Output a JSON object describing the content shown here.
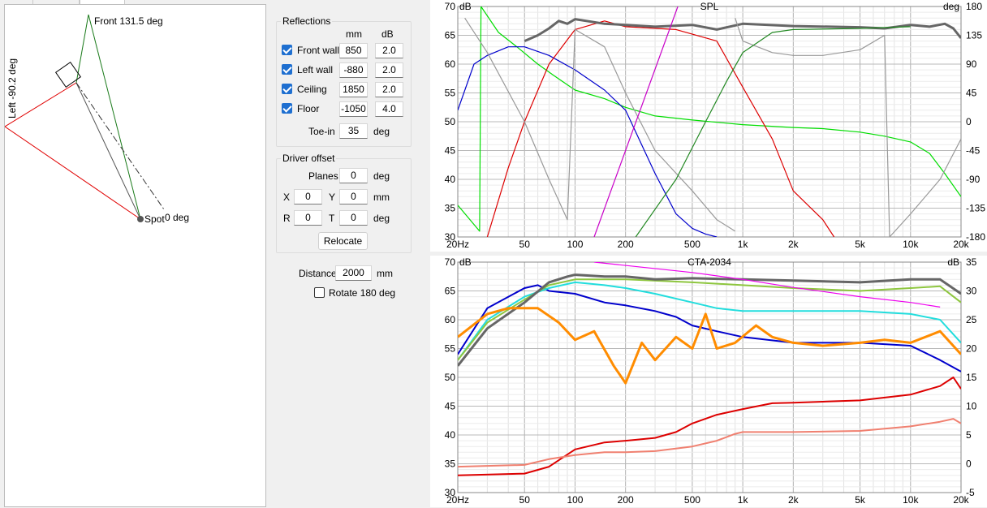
{
  "geometry": {
    "front_label": "Front 131.5 deg",
    "left_label": "Left -90.2 deg",
    "spot_label": "Spot",
    "zero_label": "0 deg"
  },
  "reflections": {
    "title": "Reflections",
    "col_mm": "mm",
    "col_db": "dB",
    "rows": [
      {
        "label": "Front wall",
        "checked": true,
        "mm": "850",
        "db": "2.0"
      },
      {
        "label": "Left wall",
        "checked": true,
        "mm": "-880",
        "db": "2.0"
      },
      {
        "label": "Ceiling",
        "checked": true,
        "mm": "1850",
        "db": "2.0"
      },
      {
        "label": "Floor",
        "checked": true,
        "mm": "-1050",
        "db": "4.0"
      }
    ],
    "toein_label": "Toe-in",
    "toein_value": "35",
    "toein_unit": "deg"
  },
  "driver_offset": {
    "title": "Driver offset",
    "planes_label": "Planes",
    "planes_value": "0",
    "planes_unit": "deg",
    "x_label": "X",
    "x_value": "0",
    "y_label": "Y",
    "y_value": "0",
    "xy_unit": "mm",
    "r_label": "R",
    "r_value": "0",
    "t_label": "T",
    "t_value": "0",
    "rt_unit": "deg",
    "relocate_label": "Relocate"
  },
  "distance": {
    "label": "Distance",
    "value": "2000",
    "unit": "mm"
  },
  "rotate": {
    "label": "Rotate 180 deg",
    "checked": false
  },
  "chart_data": [
    {
      "type": "line",
      "title": "SPL",
      "ylabel": "dB",
      "y2label": "deg",
      "xscale": "log",
      "xlim": [
        20,
        20000
      ],
      "ylim": [
        30,
        70
      ],
      "y2lim": [
        -180,
        180
      ],
      "x_ticks": [
        "20Hz",
        "50",
        "100",
        "200",
        "500",
        "1k",
        "2k",
        "5k",
        "10k",
        "20k"
      ],
      "x_tick_values": [
        20,
        50,
        100,
        200,
        500,
        1000,
        2000,
        5000,
        10000,
        20000
      ],
      "y_ticks": [
        35,
        40,
        45,
        50,
        55,
        60,
        65,
        70
      ],
      "y2_ticks": [
        -180,
        -135,
        -90,
        -45,
        0,
        45,
        90,
        135,
        180
      ],
      "grid": true,
      "series": [
        {
          "color": "#00dd00",
          "axis": "y",
          "x": [
            20,
            27,
            27.5,
            35,
            45,
            60,
            75,
            100,
            150,
            200,
            300,
            500,
            1000,
            2000,
            3000,
            5000,
            7000,
            10000,
            13000,
            16000,
            20000
          ],
          "y": [
            35.5,
            31,
            70,
            65.5,
            63,
            60,
            58,
            55.5,
            54,
            52.5,
            51,
            50.3,
            49.5,
            49,
            48.8,
            48.2,
            47.5,
            46.5,
            44.5,
            41,
            37
          ]
        },
        {
          "color": "#0000cc",
          "axis": "y",
          "x": [
            20,
            25,
            30,
            40,
            50,
            70,
            100,
            150,
            200,
            300,
            400,
            500,
            600,
            700
          ],
          "y": [
            52,
            60,
            61.5,
            63,
            63,
            61.5,
            59,
            55.5,
            52,
            41,
            34,
            31.5,
            30.5,
            30
          ]
        },
        {
          "color": "#dd0000",
          "axis": "y",
          "x": [
            30,
            40,
            50,
            70,
            100,
            150,
            200,
            400,
            700,
            1000,
            1500,
            2000,
            3000,
            3500
          ],
          "y": [
            30,
            42,
            50,
            60,
            66,
            67.5,
            66.5,
            66,
            64,
            56,
            47,
            38,
            33,
            30
          ]
        },
        {
          "color": "#666666",
          "axis": "y",
          "width": 3,
          "x": [
            50,
            60,
            70,
            80,
            90,
            100,
            150,
            200,
            300,
            500,
            700,
            1000,
            2000,
            5000,
            7000,
            10000,
            13000,
            16000,
            18000,
            20000
          ],
          "y": [
            64,
            65,
            66.2,
            67.5,
            67,
            67.8,
            67,
            66.8,
            66.5,
            66.8,
            66,
            67,
            66.6,
            66.4,
            66.2,
            66.8,
            66.5,
            67,
            66.2,
            64.5
          ]
        },
        {
          "color": "#999999",
          "axis": "y",
          "x": [
            22,
            30,
            50,
            70,
            90,
            100,
            150,
            200,
            300,
            500,
            700,
            900
          ],
          "y": [
            68,
            62,
            50,
            40,
            33,
            66,
            63,
            55,
            45,
            38,
            33,
            31
          ]
        },
        {
          "color": "#999999",
          "axis": "y",
          "x": [
            900,
            1000,
            1500,
            2000,
            3000,
            5000,
            7000,
            7500,
            10000,
            15000,
            20000
          ],
          "y": [
            68,
            64,
            62,
            61.5,
            61.5,
            62.5,
            65,
            30,
            34,
            40,
            47
          ]
        },
        {
          "color": "#c800c8",
          "axis": "y",
          "x": [
            130,
            410
          ],
          "y": [
            30,
            70
          ]
        },
        {
          "color": "#228822",
          "axis": "y",
          "x": [
            230,
            400,
            600,
            800,
            1000,
            1500,
            2000,
            5000,
            10000
          ],
          "y": [
            30,
            40,
            50,
            57,
            62,
            65.5,
            66,
            66.2,
            66.5
          ]
        }
      ]
    },
    {
      "type": "line",
      "title": "CTA-2034",
      "ylabel": "dB",
      "y2label": "dB",
      "xscale": "log",
      "xlim": [
        20,
        20000
      ],
      "ylim": [
        30,
        70
      ],
      "y2lim": [
        -5,
        35
      ],
      "x_ticks": [
        "20Hz",
        "50",
        "100",
        "200",
        "500",
        "1k",
        "2k",
        "5k",
        "10k",
        "20k"
      ],
      "x_tick_values": [
        20,
        50,
        100,
        200,
        500,
        1000,
        2000,
        5000,
        10000,
        20000
      ],
      "y_ticks": [
        35,
        40,
        45,
        50,
        55,
        60,
        65,
        70
      ],
      "y2_ticks": [
        -5,
        0,
        5,
        10,
        15,
        20,
        25,
        30,
        35
      ],
      "grid": true,
      "series": [
        {
          "color": "#0000cc",
          "axis": "y",
          "width": 2,
          "x": [
            20,
            30,
            50,
            60,
            70,
            100,
            150,
            200,
            300,
            400,
            500,
            700,
            1000,
            2000,
            5000,
            10000,
            15000,
            20000
          ],
          "y": [
            54,
            62,
            65.5,
            66,
            65,
            64.5,
            63,
            62.5,
            61.5,
            60.5,
            59,
            58,
            57,
            56,
            56,
            55.5,
            53,
            51
          ]
        },
        {
          "color": "#22dddd",
          "axis": "y",
          "width": 2,
          "x": [
            20,
            30,
            50,
            70,
            100,
            150,
            200,
            300,
            500,
            700,
            1000,
            2000,
            5000,
            10000,
            15000,
            20000
          ],
          "y": [
            53,
            60,
            64,
            65.5,
            66.5,
            66,
            65.5,
            64.5,
            63,
            62,
            61.5,
            61.5,
            61.5,
            61,
            60,
            56
          ]
        },
        {
          "color": "#8ec63f",
          "axis": "y",
          "width": 2,
          "x": [
            20,
            30,
            50,
            70,
            100,
            200,
            500,
            1000,
            2000,
            5000,
            10000,
            15000,
            20000
          ],
          "y": [
            53,
            59.5,
            63.5,
            66,
            67,
            67,
            66.5,
            66,
            65.5,
            65,
            65.5,
            65.8,
            63
          ]
        },
        {
          "color": "#666666",
          "axis": "y",
          "width": 3,
          "x": [
            20,
            30,
            50,
            70,
            90,
            100,
            150,
            200,
            300,
            500,
            1000,
            2000,
            5000,
            10000,
            15000,
            20000
          ],
          "y": [
            52,
            58.5,
            63,
            66.5,
            67.5,
            67.8,
            67.5,
            67.5,
            67,
            67.2,
            67,
            66.8,
            66.5,
            67,
            67,
            64.5
          ]
        },
        {
          "color": "#ee00ee",
          "axis": "y",
          "x": [
            130,
            500,
            1000,
            2000,
            5000,
            10000,
            15000
          ],
          "y": [
            70,
            68.2,
            67,
            65.6,
            64,
            63,
            62.2
          ]
        },
        {
          "color": "#ff8c00",
          "axis": "y2",
          "width": 3,
          "x": [
            20,
            30,
            40,
            60,
            80,
            100,
            130,
            170,
            200,
            250,
            300,
            400,
            500,
            600,
            700,
            900,
            1200,
            1500,
            2000,
            3000,
            5000,
            7000,
            10000,
            15000,
            20000
          ],
          "y": [
            22,
            26,
            27,
            27,
            24.5,
            21.5,
            23,
            17,
            14,
            21,
            18,
            22,
            20,
            26,
            20,
            21,
            24,
            22,
            21,
            20.5,
            21,
            21.5,
            21,
            23,
            19
          ]
        },
        {
          "color": "#dd0000",
          "axis": "y",
          "width": 2,
          "x": [
            20,
            50,
            70,
            100,
            150,
            200,
            300,
            400,
            500,
            700,
            1000,
            1500,
            2000,
            5000,
            10000,
            15000,
            18000,
            20000
          ],
          "y": [
            33,
            33.3,
            34.5,
            37.5,
            38.7,
            39,
            39.5,
            40.5,
            42,
            43.5,
            44.5,
            45.5,
            45.6,
            46,
            47,
            48.5,
            50,
            48
          ]
        },
        {
          "color": "#f08070",
          "axis": "y",
          "width": 2,
          "x": [
            20,
            50,
            70,
            100,
            150,
            200,
            300,
            500,
            700,
            900,
            1000,
            2000,
            5000,
            10000,
            15000,
            18000,
            20000
          ],
          "y": [
            34.5,
            34.8,
            35.8,
            36.5,
            37,
            37,
            37.2,
            38,
            39,
            40.2,
            40.5,
            40.5,
            40.7,
            41.5,
            42.3,
            42.8,
            42
          ]
        }
      ]
    }
  ]
}
